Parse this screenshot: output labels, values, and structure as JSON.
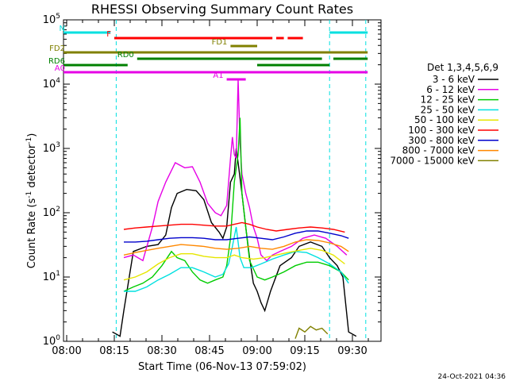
{
  "chart_data": {
    "type": "line",
    "title": "RHESSI Observing Summary Count Rates",
    "xlabel": "Start Time (06-Nov-13 07:59:02)",
    "ylabel_main": "Count Rate (s",
    "ylabel_mid": " detector",
    "ylabel_end": ")",
    "ylabel_sup": "-1",
    "y_scale": "log",
    "ylim": [
      1,
      100000
    ],
    "xlim": [
      "07:59",
      "09:39"
    ],
    "x_ticks": [
      "08:00",
      "08:15",
      "08:30",
      "08:45",
      "09:00",
      "09:15",
      "09:30"
    ],
    "y_tick_exponents": [
      "0",
      "1",
      "2",
      "3",
      "4",
      "5"
    ],
    "y_tick_base": "10",
    "timestamp": "24-Oct-2021 04:36",
    "legend_title": "Det 1,3,4,5,6,9",
    "series": [
      {
        "name": "3 - 6 keV",
        "color": "#000000",
        "points": [
          [
            8.24,
            1.4
          ],
          [
            8.26,
            1.3
          ],
          [
            8.28,
            1.2
          ],
          [
            8.3,
            3
          ],
          [
            8.35,
            25
          ],
          [
            8.42,
            30
          ],
          [
            8.48,
            32
          ],
          [
            8.52,
            45
          ],
          [
            8.55,
            120
          ],
          [
            8.58,
            200
          ],
          [
            8.63,
            230
          ],
          [
            8.68,
            220
          ],
          [
            8.72,
            160
          ],
          [
            8.76,
            70
          ],
          [
            8.8,
            50
          ],
          [
            8.82,
            40
          ],
          [
            8.84,
            60
          ],
          [
            8.86,
            300
          ],
          [
            8.88,
            400
          ],
          [
            8.89,
            1000
          ],
          [
            8.9,
            600
          ],
          [
            8.92,
            200
          ],
          [
            8.94,
            60
          ],
          [
            8.96,
            20
          ],
          [
            8.98,
            8
          ],
          [
            9.0,
            6
          ],
          [
            9.02,
            4
          ],
          [
            9.04,
            3
          ],
          [
            9.07,
            6
          ],
          [
            9.12,
            15
          ],
          [
            9.18,
            20
          ],
          [
            9.22,
            30
          ],
          [
            9.28,
            35
          ],
          [
            9.34,
            30
          ],
          [
            9.38,
            20
          ],
          [
            9.42,
            15
          ],
          [
            9.45,
            10
          ],
          [
            9.48,
            1.4
          ],
          [
            9.52,
            1.2
          ]
        ]
      },
      {
        "name": "6 - 12 keV",
        "color": "#e600e6",
        "points": [
          [
            8.3,
            20
          ],
          [
            8.35,
            22
          ],
          [
            8.4,
            18
          ],
          [
            8.45,
            60
          ],
          [
            8.48,
            150
          ],
          [
            8.52,
            300
          ],
          [
            8.57,
            600
          ],
          [
            8.62,
            500
          ],
          [
            8.66,
            520
          ],
          [
            8.7,
            300
          ],
          [
            8.74,
            140
          ],
          [
            8.78,
            100
          ],
          [
            8.81,
            90
          ],
          [
            8.84,
            130
          ],
          [
            8.86,
            700
          ],
          [
            8.87,
            1500
          ],
          [
            8.88,
            800
          ],
          [
            8.89,
            700
          ],
          [
            8.9,
            12000
          ],
          [
            8.91,
            1200
          ],
          [
            8.92,
            400
          ],
          [
            8.94,
            200
          ],
          [
            8.96,
            120
          ],
          [
            8.98,
            60
          ],
          [
            9.0,
            40
          ],
          [
            9.02,
            22
          ],
          [
            9.05,
            18
          ],
          [
            9.08,
            22
          ],
          [
            9.12,
            25
          ],
          [
            9.18,
            30
          ],
          [
            9.24,
            40
          ],
          [
            9.3,
            45
          ],
          [
            9.36,
            40
          ],
          [
            9.42,
            30
          ],
          [
            9.47,
            22
          ]
        ]
      },
      {
        "name": "12 - 25 keV",
        "color": "#00cc00",
        "points": [
          [
            8.3,
            6
          ],
          [
            8.35,
            7
          ],
          [
            8.4,
            8
          ],
          [
            8.45,
            10
          ],
          [
            8.5,
            15
          ],
          [
            8.55,
            25
          ],
          [
            8.58,
            20
          ],
          [
            8.62,
            18
          ],
          [
            8.66,
            12
          ],
          [
            8.7,
            9
          ],
          [
            8.74,
            8
          ],
          [
            8.78,
            9
          ],
          [
            8.82,
            10
          ],
          [
            8.84,
            15
          ],
          [
            8.86,
            40
          ],
          [
            8.88,
            300
          ],
          [
            8.9,
            800
          ],
          [
            8.91,
            3000
          ],
          [
            8.92,
            200
          ],
          [
            8.94,
            60
          ],
          [
            8.96,
            18
          ],
          [
            9.0,
            10
          ],
          [
            9.04,
            9
          ],
          [
            9.08,
            10
          ],
          [
            9.14,
            12
          ],
          [
            9.2,
            15
          ],
          [
            9.26,
            17
          ],
          [
            9.32,
            17
          ],
          [
            9.38,
            15
          ],
          [
            9.44,
            12
          ],
          [
            9.48,
            9
          ]
        ]
      },
      {
        "name": "25 - 50 keV",
        "color": "#00e0e0",
        "points": [
          [
            8.3,
            6
          ],
          [
            8.36,
            6
          ],
          [
            8.42,
            7
          ],
          [
            8.48,
            9
          ],
          [
            8.54,
            11
          ],
          [
            8.6,
            14
          ],
          [
            8.66,
            14
          ],
          [
            8.72,
            12
          ],
          [
            8.78,
            10
          ],
          [
            8.82,
            11
          ],
          [
            8.85,
            16
          ],
          [
            8.87,
            30
          ],
          [
            8.89,
            60
          ],
          [
            8.91,
            20
          ],
          [
            8.93,
            14
          ],
          [
            8.97,
            14
          ],
          [
            9.02,
            16
          ],
          [
            9.08,
            19
          ],
          [
            9.14,
            22
          ],
          [
            9.2,
            25
          ],
          [
            9.26,
            24
          ],
          [
            9.32,
            20
          ],
          [
            9.38,
            16
          ],
          [
            9.44,
            12
          ],
          [
            9.48,
            8
          ]
        ]
      },
      {
        "name": "50 - 100 keV",
        "color": "#e6e600",
        "points": [
          [
            8.3,
            9
          ],
          [
            8.36,
            10
          ],
          [
            8.42,
            12
          ],
          [
            8.48,
            16
          ],
          [
            8.54,
            20
          ],
          [
            8.6,
            23
          ],
          [
            8.66,
            23
          ],
          [
            8.72,
            21
          ],
          [
            8.78,
            20
          ],
          [
            8.84,
            20
          ],
          [
            8.88,
            22
          ],
          [
            8.92,
            20
          ],
          [
            8.98,
            19
          ],
          [
            9.04,
            20
          ],
          [
            9.1,
            22
          ],
          [
            9.16,
            24
          ],
          [
            9.22,
            26
          ],
          [
            9.28,
            28
          ],
          [
            9.34,
            26
          ],
          [
            9.4,
            22
          ],
          [
            9.46,
            16
          ]
        ]
      },
      {
        "name": "100 - 300 keV",
        "color": "#ff0000",
        "points": [
          [
            8.3,
            55
          ],
          [
            8.36,
            58
          ],
          [
            8.42,
            60
          ],
          [
            8.48,
            62
          ],
          [
            8.54,
            64
          ],
          [
            8.6,
            66
          ],
          [
            8.66,
            66
          ],
          [
            8.72,
            64
          ],
          [
            8.78,
            62
          ],
          [
            8.84,
            62
          ],
          [
            8.88,
            66
          ],
          [
            8.92,
            70
          ],
          [
            8.96,
            66
          ],
          [
            9.0,
            60
          ],
          [
            9.05,
            55
          ],
          [
            9.1,
            52
          ],
          [
            9.16,
            55
          ],
          [
            9.22,
            58
          ],
          [
            9.28,
            60
          ],
          [
            9.34,
            58
          ],
          [
            9.4,
            55
          ],
          [
            9.46,
            50
          ]
        ]
      },
      {
        "name": "300 - 800 keV",
        "color": "#0000cc",
        "points": [
          [
            8.3,
            35
          ],
          [
            8.36,
            35
          ],
          [
            8.42,
            36
          ],
          [
            8.48,
            38
          ],
          [
            8.54,
            40
          ],
          [
            8.6,
            41
          ],
          [
            8.66,
            41
          ],
          [
            8.72,
            40
          ],
          [
            8.78,
            38
          ],
          [
            8.84,
            38
          ],
          [
            8.9,
            40
          ],
          [
            8.96,
            42
          ],
          [
            9.02,
            40
          ],
          [
            9.08,
            38
          ],
          [
            9.14,
            42
          ],
          [
            9.2,
            48
          ],
          [
            9.26,
            52
          ],
          [
            9.32,
            52
          ],
          [
            9.38,
            48
          ],
          [
            9.44,
            44
          ],
          [
            9.48,
            40
          ]
        ]
      },
      {
        "name": "800 - 7000 keV",
        "color": "#ff8800",
        "points": [
          [
            8.3,
            22
          ],
          [
            8.36,
            24
          ],
          [
            8.42,
            26
          ],
          [
            8.48,
            28
          ],
          [
            8.54,
            30
          ],
          [
            8.6,
            32
          ],
          [
            8.66,
            31
          ],
          [
            8.72,
            30
          ],
          [
            8.78,
            28
          ],
          [
            8.84,
            27
          ],
          [
            8.9,
            28
          ],
          [
            8.96,
            30
          ],
          [
            9.02,
            28
          ],
          [
            9.08,
            27
          ],
          [
            9.14,
            30
          ],
          [
            9.2,
            35
          ],
          [
            9.26,
            38
          ],
          [
            9.32,
            37
          ],
          [
            9.38,
            34
          ],
          [
            9.44,
            30
          ],
          [
            9.48,
            25
          ]
        ]
      },
      {
        "name": "7000 - 15000 keV",
        "color": "#808000",
        "points": [
          [
            9.2,
            1.1
          ],
          [
            9.22,
            1.6
          ],
          [
            9.25,
            1.4
          ],
          [
            9.28,
            1.7
          ],
          [
            9.31,
            1.5
          ],
          [
            9.34,
            1.6
          ],
          [
            9.37,
            1.3
          ]
        ]
      }
    ],
    "state_bars": [
      {
        "label": "N",
        "color": "#00e0e0",
        "row": 0,
        "segments": [
          [
            7.98,
            8.23
          ],
          [
            9.38,
            9.58
          ]
        ]
      },
      {
        "label": "F",
        "color": "#ff0000",
        "row": 1,
        "segments": [
          [
            8.25,
            9.08
          ],
          [
            9.1,
            9.14
          ],
          [
            9.16,
            9.24
          ]
        ]
      },
      {
        "label": "FD1",
        "color": "#808000",
        "row": 2,
        "segments": [
          [
            8.86,
            9.0
          ]
        ]
      },
      {
        "label": "FD2",
        "color": "#808000",
        "row": 3,
        "segments": [
          [
            7.98,
            9.58
          ]
        ]
      },
      {
        "label": "RD0",
        "color": "#008000",
        "row": 4,
        "segments": [
          [
            8.37,
            9.34
          ],
          [
            9.4,
            9.58
          ]
        ]
      },
      {
        "label": "RD6",
        "color": "#008000",
        "row": 5,
        "segments": [
          [
            7.98,
            8.32
          ],
          [
            9.0,
            9.38
          ]
        ]
      },
      {
        "label": "A0",
        "color": "#e600e6",
        "row": 6,
        "segments": [
          [
            7.98,
            9.58
          ]
        ]
      },
      {
        "label": "A1",
        "color": "#e600e6",
        "row": 7,
        "segments": [
          [
            8.84,
            8.94
          ]
        ]
      }
    ],
    "vlines": [
      8.26,
      9.38,
      9.57
    ]
  }
}
